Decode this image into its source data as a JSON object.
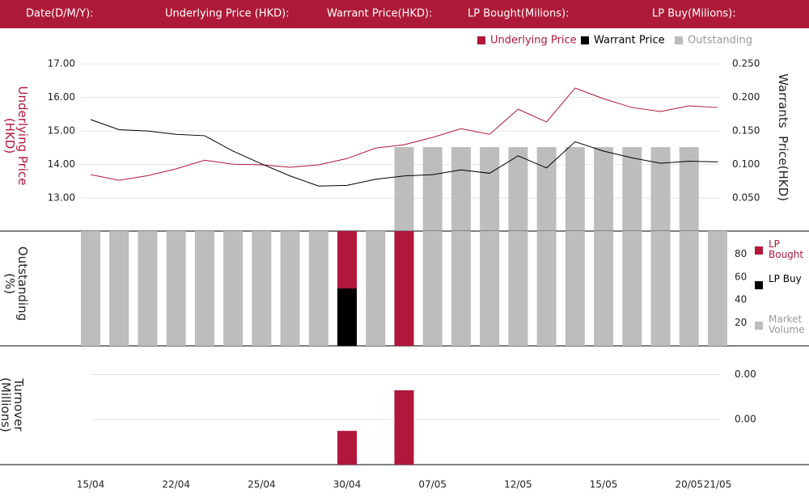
{
  "header": {
    "fields": [
      "Date(D/M/Y):",
      "Underlying Price (HKD):",
      "Warrant  Price(HKD):",
      "LP Bought(Milions):",
      "LP Buy(Milions):"
    ]
  },
  "chart_data": [
    {
      "type": "line",
      "ylabel": "Underlying Price (HKD)",
      "y2label": "Warrants  Price(HKD)",
      "categories": [
        "15/04",
        null,
        null,
        "22/04",
        null,
        null,
        "25/04",
        null,
        null,
        "30/04",
        null,
        null,
        "07/05",
        null,
        null,
        "12/05",
        null,
        null,
        "15/05",
        null,
        null,
        "20/05",
        "21/05"
      ],
      "series": [
        {
          "name": "Underlying Price",
          "color": "#b0173a",
          "type": "line",
          "values": [
            13.7,
            13.53,
            13.67,
            13.87,
            14.13,
            14.01,
            13.99,
            13.92,
            13.99,
            14.18,
            14.49,
            14.59,
            14.81,
            15.07,
            14.9,
            15.65,
            15.27,
            16.28,
            15.96,
            15.7,
            15.58,
            15.75,
            15.7
          ]
        },
        {
          "name": "Warrant  Price",
          "color": "#000000",
          "type": "line",
          "axis": "y2",
          "values": [
            0.167,
            0.152,
            0.15,
            0.145,
            0.143,
            0.12,
            0.101,
            0.083,
            0.068,
            0.069,
            0.078,
            0.083,
            0.085,
            0.092,
            0.087,
            0.113,
            0.095,
            0.134,
            0.12,
            0.11,
            0.102,
            0.105,
            0.104
          ]
        },
        {
          "name": "Outstanding",
          "color": "#bdbdbd",
          "type": "bar",
          "values": [
            null,
            null,
            null,
            null,
            null,
            null,
            null,
            null,
            null,
            null,
            null,
            14.52,
            14.52,
            14.52,
            14.52,
            14.52,
            14.52,
            14.52,
            14.52,
            14.52,
            14.52,
            14.52,
            null
          ]
        }
      ],
      "ylim": [
        12.04,
        17.46
      ],
      "yticks": [
        {
          "value": 13,
          "label": "13.00"
        },
        {
          "value": 14,
          "label": "14.00"
        },
        {
          "value": 15,
          "label": "15.00"
        },
        {
          "value": 16,
          "label": "16.00"
        },
        {
          "value": 17,
          "label": "17.00"
        }
      ],
      "y2lim": [
        0.002,
        0.273
      ],
      "y2ticks": [
        {
          "value": 0.05,
          "label": "0.050"
        },
        {
          "value": 0.1,
          "label": "0.100"
        },
        {
          "value": 0.15,
          "label": "0.150"
        },
        {
          "value": 0.2,
          "label": "0.200"
        },
        {
          "value": 0.25,
          "label": "0.250"
        }
      ],
      "grid": true,
      "legend": "top-right"
    },
    {
      "type": "bar",
      "stacked": true,
      "ylabel": "Outstanding (%)",
      "series": [
        {
          "name": "LP Bought",
          "color": "#b0173a",
          "values": [
            null,
            null,
            null,
            null,
            null,
            null,
            null,
            null,
            null,
            50,
            null,
            100,
            null,
            null,
            null,
            null,
            null,
            null,
            null,
            null,
            null,
            null,
            null
          ]
        },
        {
          "name": "LP Buy",
          "color": "#000000",
          "values": [
            null,
            null,
            null,
            null,
            null,
            null,
            null,
            null,
            null,
            50,
            null,
            null,
            null,
            null,
            null,
            null,
            null,
            null,
            null,
            null,
            null,
            null,
            null
          ]
        },
        {
          "name": "Market Volume",
          "color": "#bdbdbd",
          "values": [
            100,
            100,
            100,
            100,
            100,
            100,
            100,
            100,
            100,
            null,
            100,
            null,
            100,
            100,
            100,
            100,
            100,
            100,
            100,
            100,
            100,
            100,
            100
          ]
        }
      ],
      "ylim": [
        0,
        100
      ],
      "yticks": [
        20,
        40,
        60,
        80
      ],
      "legend": "right"
    },
    {
      "type": "bar",
      "ylabel": "Turnover (Millions)",
      "color": "#b0173a",
      "values": [
        null,
        null,
        null,
        null,
        null,
        null,
        null,
        null,
        null,
        0.0015,
        null,
        0.0033,
        null,
        null,
        null,
        null,
        null,
        null,
        null,
        null,
        null,
        null,
        null
      ],
      "ylim": [
        0,
        0.0052
      ],
      "yticks": [
        {
          "value": 0.002,
          "label": "0.00"
        },
        {
          "value": 0.004,
          "label": "0.00"
        }
      ],
      "grid": true
    }
  ]
}
